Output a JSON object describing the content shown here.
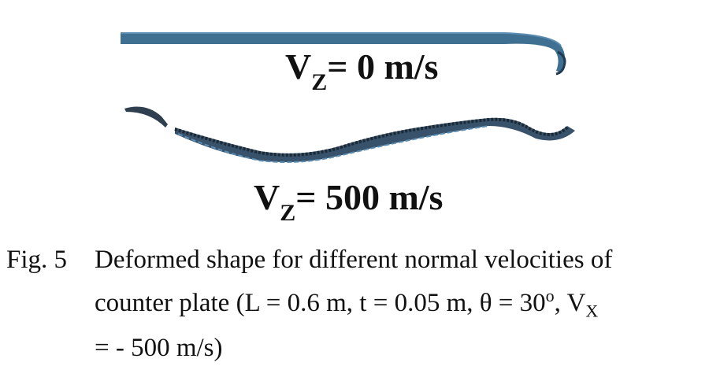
{
  "figure": {
    "labels": [
      {
        "var": "V",
        "sub": "Z",
        "rest": "= 0 m/s"
      },
      {
        "var": "V",
        "sub": "Z",
        "rest": "= 500 m/s"
      }
    ],
    "plate_color": "#3f6f91"
  },
  "caption": {
    "number": "Fig. 5",
    "line1": "Deformed shape for different normal velocities of",
    "line2_a": "counter plate (L = 0.6 m, t = 0.05 m, θ = 30",
    "line2_sup": "o",
    "line2_b": ", V",
    "line2_sub": "X",
    "line3": "= - 500 m/s)"
  }
}
